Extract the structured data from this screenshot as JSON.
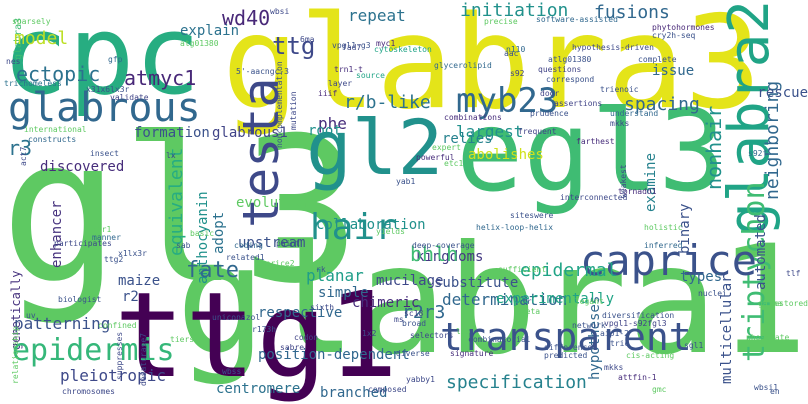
{
  "words": [
    {
      "text": "gl3",
      "color": "#5ec962"
    },
    {
      "text": "glabra1",
      "color": "#5ec962"
    },
    {
      "text": "glabra3",
      "color": "#e4e419"
    },
    {
      "text": "cpc",
      "color": "#27ad81"
    },
    {
      "text": "egl3",
      "color": "#3fbc73"
    },
    {
      "text": "ttg1",
      "color": "#440154"
    },
    {
      "text": "gl2",
      "color": "#21918c"
    },
    {
      "text": "glabra2",
      "color": "#20a486"
    },
    {
      "text": "transparent",
      "color": "#3b528b"
    },
    {
      "text": "caprice",
      "color": "#3b528b"
    },
    {
      "text": "hair",
      "color": "#21918c"
    },
    {
      "text": "testa",
      "color": "#3e4989"
    },
    {
      "text": "myb23",
      "color": "#31688e"
    },
    {
      "text": "glabrous",
      "color": "#31688e"
    },
    {
      "text": "epidermis",
      "color": "#35b779"
    },
    {
      "text": "triptychon",
      "color": "#3fbc73"
    },
    {
      "text": "ttg",
      "color": "#3e4989"
    },
    {
      "text": "atmyc1",
      "color": "#482878"
    },
    {
      "text": "ectopic",
      "color": "#2c728e"
    },
    {
      "text": "fate",
      "color": "#31688e"
    },
    {
      "text": "r3",
      "color": "#2c728e"
    },
    {
      "text": "wd40",
      "color": "#482878"
    },
    {
      "text": "model",
      "color": "#bddf26"
    },
    {
      "text": "initiation",
      "color": "#21918c"
    },
    {
      "text": "repeat",
      "color": "#2c728e"
    },
    {
      "text": "fusions",
      "color": "#31688e"
    },
    {
      "text": "nonhair",
      "color": "#21918c"
    },
    {
      "text": "epidermal",
      "color": "#20a486"
    },
    {
      "text": "r2r3",
      "color": "#31688e"
    },
    {
      "text": "determination",
      "color": "#31688e"
    },
    {
      "text": "specification",
      "color": "#26828e"
    },
    {
      "text": "kingdoms",
      "color": "#443983"
    },
    {
      "text": "patterning",
      "color": "#3b528b"
    },
    {
      "text": "pleiotropic",
      "color": "#3e4989"
    },
    {
      "text": "maize",
      "color": "#3b528b"
    },
    {
      "text": "bhlh",
      "color": "#3fbc73"
    },
    {
      "text": "spacing",
      "color": "#31688e"
    },
    {
      "text": "neighboring",
      "color": "#31688e"
    },
    {
      "text": "r/b-like",
      "color": "#2c728e"
    },
    {
      "text": "phe",
      "color": "#472d7b"
    },
    {
      "text": "largest",
      "color": "#21918c"
    },
    {
      "text": "abolishes",
      "color": "#d0e11c"
    },
    {
      "text": "glabrous1",
      "color": "#414487"
    },
    {
      "text": "formation",
      "color": "#3b528b"
    },
    {
      "text": "explain",
      "color": "#2c728e"
    },
    {
      "text": "issue",
      "color": "#31688e"
    },
    {
      "text": "rescue",
      "color": "#3b528b"
    },
    {
      "text": "equivalent",
      "color": "#27ad81"
    },
    {
      "text": "enhancer",
      "color": "#46327e"
    },
    {
      "text": "discovered",
      "color": "#472d7b"
    },
    {
      "text": "anthocyanin",
      "color": "#21918c"
    },
    {
      "text": "adopt",
      "color": "#2c728e"
    },
    {
      "text": "upstream",
      "color": "#3b528b"
    },
    {
      "text": "evolution",
      "color": "#5ec962"
    },
    {
      "text": "collaboration",
      "color": "#21918c"
    },
    {
      "text": "substitute",
      "color": "#3b528b"
    },
    {
      "text": "examine",
      "color": "#26828e"
    },
    {
      "text": "binary",
      "color": "#3b528b"
    },
    {
      "text": "automated",
      "color": "#3b528b"
    },
    {
      "text": "types",
      "color": "#31688e"
    },
    {
      "text": "root",
      "color": "#21918c"
    },
    {
      "text": "relies",
      "color": "#26828e"
    },
    {
      "text": "r2",
      "color": "#3b528b"
    },
    {
      "text": "planar",
      "color": "#1f9e89"
    },
    {
      "text": "mucilage",
      "color": "#3e4989"
    },
    {
      "text": "simple",
      "color": "#31688e"
    },
    {
      "text": "chimeric",
      "color": "#472d7b"
    },
    {
      "text": "experimentally",
      "color": "#20a486"
    },
    {
      "text": "respective",
      "color": "#31688e"
    },
    {
      "text": "position-dependent",
      "color": "#31688e"
    },
    {
      "text": "centromere",
      "color": "#2c728e"
    },
    {
      "text": "branched",
      "color": "#31688e"
    },
    {
      "text": "hypotheses",
      "color": "#31688e"
    },
    {
      "text": "multicellular",
      "color": "#3b528b"
    },
    {
      "text": "genetically",
      "color": "#46327e"
    },
    {
      "text": "glabra3",
      "color": "#3fbc73"
    },
    {
      "text": "trichomeless",
      "color": "#2c728e"
    },
    {
      "text": "sparsely",
      "color": "#5ec962"
    },
    {
      "text": "nes",
      "color": "#3e4989"
    },
    {
      "text": "gfp",
      "color": "#31688e"
    },
    {
      "text": "validate",
      "color": "#414487"
    },
    {
      "text": "x31x6lx3r",
      "color": "#3b528b"
    },
    {
      "text": "atg01380",
      "color": "#5ec962"
    },
    {
      "text": "5'-aacngc-3",
      "color": "#3b528b"
    },
    {
      "text": "6ma",
      "color": "#3e4989"
    },
    {
      "text": "wbsi",
      "color": "#3e4989"
    },
    {
      "text": "mkk7",
      "color": "#3e4989"
    },
    {
      "text": "vpgl1-g3",
      "color": "#3b528b"
    },
    {
      "text": "cytoskeleton",
      "color": "#20a486"
    },
    {
      "text": "myc1",
      "color": "#482878"
    },
    {
      "text": "fad7",
      "color": "#3e4989"
    },
    {
      "text": "trn1-t",
      "color": "#472d7b"
    },
    {
      "text": "source",
      "color": "#20a486"
    },
    {
      "text": "glycerolipid",
      "color": "#31688e"
    },
    {
      "text": "n110",
      "color": "#31688e"
    },
    {
      "text": "s92",
      "color": "#414487"
    },
    {
      "text": "precise",
      "color": "#5ec962"
    },
    {
      "text": "software-assisted",
      "color": "#31688e"
    },
    {
      "text": "phytohormones",
      "color": "#482878"
    },
    {
      "text": "cry2h-seq",
      "color": "#3b528b"
    },
    {
      "text": "hypothesis-driven",
      "color": "#3e4989"
    },
    {
      "text": "complete",
      "color": "#3b528b"
    },
    {
      "text": "atlg01380",
      "color": "#3b528b"
    },
    {
      "text": "questions",
      "color": "#414487"
    },
    {
      "text": "correspond",
      "color": "#3b528b"
    },
    {
      "text": "trienoic",
      "color": "#3b528b"
    },
    {
      "text": "assertions",
      "color": "#414487"
    },
    {
      "text": "prudence",
      "color": "#3b528b"
    },
    {
      "text": "understand",
      "color": "#31688e"
    },
    {
      "text": "combinations",
      "color": "#472d7b"
    },
    {
      "text": "frequent",
      "color": "#414487"
    },
    {
      "text": "noncomplementation",
      "color": "#3b528b"
    },
    {
      "text": "mutation",
      "color": "#3e4989"
    },
    {
      "text": "iiif",
      "color": "#482878"
    },
    {
      "text": "layer",
      "color": "#3e4989"
    },
    {
      "text": "door",
      "color": "#414487"
    },
    {
      "text": "expert",
      "color": "#5ec962"
    },
    {
      "text": "powerful",
      "color": "#472d7b"
    },
    {
      "text": "farthest",
      "color": "#472d7b"
    },
    {
      "text": "mkks",
      "color": "#3e4989"
    },
    {
      "text": "s92f",
      "color": "#31688e"
    },
    {
      "text": "international",
      "color": "#5ec962"
    },
    {
      "text": "constructs",
      "color": "#31688e"
    },
    {
      "text": "insect",
      "color": "#3b528b"
    },
    {
      "text": "act7",
      "color": "#3e4989"
    },
    {
      "text": "siteswere",
      "color": "#3b528b"
    },
    {
      "text": "interconnected",
      "color": "#3e4989"
    },
    {
      "text": "tornado1",
      "color": "#472d7b"
    },
    {
      "text": "weakest",
      "color": "#3e4989"
    },
    {
      "text": "etc1",
      "color": "#5ec962"
    },
    {
      "text": "yab1",
      "color": "#3b528b"
    },
    {
      "text": "deep-coverage",
      "color": "#3b528b"
    },
    {
      "text": "yields",
      "color": "#5ec962"
    },
    {
      "text": "helix-loop-helix",
      "color": "#31688e"
    },
    {
      "text": "holistic",
      "color": "#5ec962"
    },
    {
      "text": "inferred",
      "color": "#31688e"
    },
    {
      "text": "paint",
      "color": "#3b528b"
    },
    {
      "text": "basic",
      "color": "#5ec962"
    },
    {
      "text": "coding",
      "color": "#31688e"
    },
    {
      "text": "related1",
      "color": "#3b528b"
    },
    {
      "text": "caprice2",
      "color": "#5ec962"
    },
    {
      "text": "participates",
      "color": "#3e4989"
    },
    {
      "text": "manner",
      "color": "#31688e"
    },
    {
      "text": "sab",
      "color": "#3b528b"
    },
    {
      "text": "x1lx3r",
      "color": "#3b528b"
    },
    {
      "text": "ttg2",
      "color": "#3b528b"
    },
    {
      "text": "rbr1",
      "color": "#5ec962"
    },
    {
      "text": "lx",
      "color": "#3e4989"
    },
    {
      "text": "rk",
      "color": "#3b528b"
    },
    {
      "text": "sixth",
      "color": "#3e4989"
    },
    {
      "text": "sc18",
      "color": "#414487"
    },
    {
      "text": "sufficient",
      "color": "#5ec962"
    },
    {
      "text": "elegant",
      "color": "#5ec962"
    },
    {
      "text": "nuclei",
      "color": "#3b528b"
    },
    {
      "text": "vpgl1-s92fgl3",
      "color": "#414487"
    },
    {
      "text": "diversification",
      "color": "#3b528b"
    },
    {
      "text": "aip1-2",
      "color": "#3b528b"
    },
    {
      "text": "trio",
      "color": "#3b528b"
    },
    {
      "text": "sgl1",
      "color": "#3b528b"
    },
    {
      "text": "mkks",
      "color": "#3e4989"
    },
    {
      "text": "attfin-1",
      "color": "#472d7b"
    },
    {
      "text": "cis-acting",
      "color": "#5ec962"
    },
    {
      "text": "difference",
      "color": "#3b528b"
    },
    {
      "text": "combinatorial",
      "color": "#3b528b"
    },
    {
      "text": "signature",
      "color": "#472d7b"
    },
    {
      "text": "predicted",
      "color": "#3b528b"
    },
    {
      "text": "broad",
      "color": "#3b528b"
    },
    {
      "text": "selectors",
      "color": "#3e4989"
    },
    {
      "text": "codon",
      "color": "#414487"
    },
    {
      "text": "r173h",
      "color": "#3b528b"
    },
    {
      "text": "sabre",
      "color": "#414487"
    },
    {
      "text": "diverse",
      "color": "#3b528b"
    },
    {
      "text": "yabby1",
      "color": "#3e4989"
    },
    {
      "text": "composed",
      "color": "#3e4989"
    },
    {
      "text": "chromosomes",
      "color": "#3e4989"
    },
    {
      "text": "desaturase7",
      "color": "#3e4989"
    },
    {
      "text": "suppresses",
      "color": "#3e4989"
    },
    {
      "text": "relationship",
      "color": "#5ec962"
    },
    {
      "text": "tiers",
      "color": "#5ec962"
    },
    {
      "text": "uniconazol",
      "color": "#3b528b"
    },
    {
      "text": "confined",
      "color": "#5ec962"
    },
    {
      "text": "biologist",
      "color": "#3b528b"
    },
    {
      "text": "wbss",
      "color": "#3b528b"
    },
    {
      "text": "wbsi1",
      "color": "#3b528b"
    },
    {
      "text": "phosphate",
      "color": "#5ec962"
    },
    {
      "text": "network",
      "color": "#3b528b"
    },
    {
      "text": "uv",
      "color": "#3b528b"
    },
    {
      "text": "gmc",
      "color": "#5ec962"
    },
    {
      "text": "en",
      "color": "#3b528b"
    },
    {
      "text": "1x2",
      "color": "#3e4989"
    },
    {
      "text": "aac",
      "color": "#3b528b"
    },
    {
      "text": "restored",
      "color": "#5ec962"
    },
    {
      "text": "gaiha",
      "color": "#5ec962"
    },
    {
      "text": "azeta",
      "color": "#5ec962"
    },
    {
      "text": "tr",
      "color": "#3b528b"
    },
    {
      "text": "ms",
      "color": "#3e4989"
    },
    {
      "text": "l55",
      "color": "#5ec962"
    },
    {
      "text": "tlf",
      "color": "#3e4989"
    },
    {
      "text": "cdb",
      "color": "#5ec962"
    }
  ]
}
